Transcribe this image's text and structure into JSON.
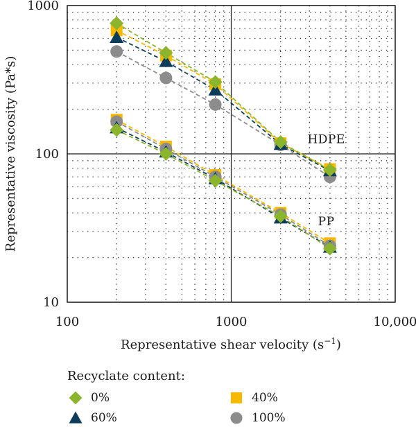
{
  "chart_data": {
    "type": "scatter",
    "xscale": "log",
    "yscale": "log",
    "xlim": [
      100,
      10000
    ],
    "ylim": [
      10,
      1000
    ],
    "xlabel": "Representative shear velocity (s",
    "xlabel_sup": "−1",
    "xlabel_end": ")",
    "ylabel": "Representative viscosity (Pa*s)",
    "xticks": [
      {
        "value": 100,
        "label": "100"
      },
      {
        "value": 1000,
        "label": "1000"
      },
      {
        "value": 10000,
        "label": "10,000"
      }
    ],
    "yticks": [
      {
        "value": 10,
        "label": "10"
      },
      {
        "value": 100,
        "label": "100"
      },
      {
        "value": 1000,
        "label": "1000"
      }
    ],
    "grid": "dotted minor, solid major",
    "annotations": [
      {
        "text": "HDPE",
        "x": 3800,
        "y": 118
      },
      {
        "text": "PP",
        "x": 3800,
        "y": 33
      }
    ],
    "legend": {
      "title": "Recyclate content:",
      "placement": "bottom"
    },
    "x": [
      200,
      400,
      800,
      2000,
      4000
    ],
    "series": [
      {
        "name": "0%",
        "marker": "diamond",
        "color": "#8ab52c",
        "group": "HDPE",
        "values": [
          760,
          480,
          305,
          120,
          78
        ]
      },
      {
        "name": "40%",
        "marker": "square",
        "color": "#f6b800",
        "group": "HDPE",
        "values": [
          680,
          460,
          295,
          118,
          79
        ]
      },
      {
        "name": "60%",
        "marker": "triangle",
        "color": "#0e3d5c",
        "group": "HDPE",
        "values": [
          610,
          420,
          270,
          116,
          77
        ]
      },
      {
        "name": "100%",
        "marker": "circle",
        "color": "#8c8c8c",
        "group": "HDPE",
        "values": [
          490,
          325,
          215,
          115,
          70
        ]
      },
      {
        "name": "0%",
        "marker": "diamond",
        "color": "#8ab52c",
        "group": "PP",
        "values": [
          145,
          100,
          66,
          38,
          23
        ]
      },
      {
        "name": "40%",
        "marker": "square",
        "color": "#f6b800",
        "group": "PP",
        "values": [
          170,
          112,
          72,
          40,
          25
        ]
      },
      {
        "name": "60%",
        "marker": "triangle",
        "color": "#0e3d5c",
        "group": "PP",
        "values": [
          150,
          103,
          68,
          37,
          23.5
        ]
      },
      {
        "name": "100%",
        "marker": "circle",
        "color": "#8c8c8c",
        "group": "PP",
        "values": [
          165,
          108,
          70,
          39,
          24
        ]
      }
    ]
  },
  "legend_items": [
    {
      "name": "0%",
      "marker": "diamond",
      "color": "#8ab52c"
    },
    {
      "name": "40%",
      "marker": "square",
      "color": "#f6b800"
    },
    {
      "name": "60%",
      "marker": "triangle",
      "color": "#0e3d5c"
    },
    {
      "name": "100%",
      "marker": "circle",
      "color": "#8c8c8c"
    }
  ]
}
